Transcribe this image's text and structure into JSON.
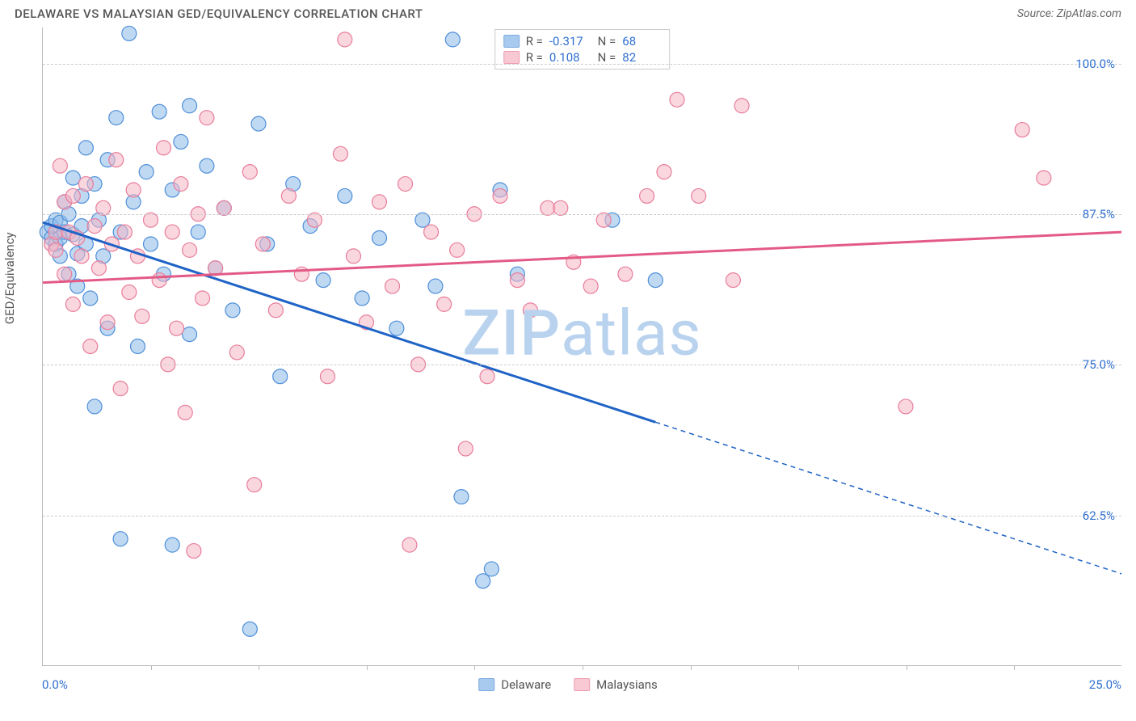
{
  "title": "DELAWARE VS MALAYSIAN GED/EQUIVALENCY CORRELATION CHART",
  "source_label": "Source:",
  "source_value": "ZipAtlas.com",
  "y_axis_title": "GED/Equivalency",
  "watermark_a": "ZIP",
  "watermark_b": "atlas",
  "watermark_color": "#b9d3ef",
  "axis_label_color": "#2f6fd0",
  "grid_color": "#cccccc",
  "plot_border_color": "#bbbbbb",
  "x_range": [
    0.0,
    25.0
  ],
  "y_range": [
    50.0,
    103.0
  ],
  "x_ticks_at": [
    2.5,
    5.0,
    7.5,
    10.0,
    12.5,
    15.0,
    17.5,
    20.0,
    22.5
  ],
  "x_tick_labels": {
    "start": "0.0%",
    "end": "25.0%"
  },
  "y_gridlines": [
    {
      "v": 100.0,
      "label": "100.0%"
    },
    {
      "v": 87.5,
      "label": "87.5%"
    },
    {
      "v": 75.0,
      "label": "75.0%"
    },
    {
      "v": 62.5,
      "label": "62.5%"
    }
  ],
  "series": [
    {
      "key": "delaware",
      "name": "Delaware",
      "fill": "#8bb9ea",
      "fill_opacity": 0.55,
      "stroke": "#4f8fd9",
      "trend_color": "#1f63c6",
      "trend_width": 3,
      "R": "-0.317",
      "N": "68",
      "trend_solid": {
        "x1": 0.0,
        "y1": 86.8,
        "x2": 14.2,
        "y2": 70.2
      },
      "trend_dash": {
        "x1": 14.2,
        "y1": 70.2,
        "x2": 25.0,
        "y2": 57.6
      },
      "points": [
        [
          0.1,
          86.0
        ],
        [
          0.2,
          85.5
        ],
        [
          0.2,
          86.5
        ],
        [
          0.3,
          85.0
        ],
        [
          0.3,
          87.0
        ],
        [
          0.4,
          85.5
        ],
        [
          0.4,
          86.8
        ],
        [
          0.4,
          84.0
        ],
        [
          0.5,
          88.5
        ],
        [
          0.5,
          86.0
        ],
        [
          0.6,
          82.5
        ],
        [
          0.6,
          87.5
        ],
        [
          0.7,
          85.8
        ],
        [
          0.7,
          90.5
        ],
        [
          0.8,
          84.2
        ],
        [
          0.8,
          81.5
        ],
        [
          0.9,
          89.0
        ],
        [
          0.9,
          86.5
        ],
        [
          1.0,
          93.0
        ],
        [
          1.0,
          85.0
        ],
        [
          1.1,
          80.5
        ],
        [
          1.2,
          90.0
        ],
        [
          1.2,
          71.5
        ],
        [
          1.3,
          87.0
        ],
        [
          1.4,
          84.0
        ],
        [
          1.5,
          92.0
        ],
        [
          1.5,
          78.0
        ],
        [
          1.7,
          95.5
        ],
        [
          1.8,
          86.0
        ],
        [
          1.8,
          60.5
        ],
        [
          2.0,
          102.5
        ],
        [
          2.1,
          88.5
        ],
        [
          2.2,
          76.5
        ],
        [
          2.4,
          91.0
        ],
        [
          2.5,
          85.0
        ],
        [
          2.7,
          96.0
        ],
        [
          2.8,
          82.5
        ],
        [
          3.0,
          89.5
        ],
        [
          3.0,
          60.0
        ],
        [
          3.2,
          93.5
        ],
        [
          3.4,
          77.5
        ],
        [
          3.4,
          96.5
        ],
        [
          3.6,
          86.0
        ],
        [
          3.8,
          91.5
        ],
        [
          4.0,
          83.0
        ],
        [
          4.2,
          88.0
        ],
        [
          4.4,
          79.5
        ],
        [
          4.8,
          53.0
        ],
        [
          5.0,
          95.0
        ],
        [
          5.2,
          85.0
        ],
        [
          5.5,
          74.0
        ],
        [
          5.8,
          90.0
        ],
        [
          6.2,
          86.5
        ],
        [
          6.5,
          82.0
        ],
        [
          7.0,
          89.0
        ],
        [
          7.4,
          80.5
        ],
        [
          7.8,
          85.5
        ],
        [
          8.2,
          78.0
        ],
        [
          8.8,
          87.0
        ],
        [
          9.1,
          81.5
        ],
        [
          9.5,
          102.0
        ],
        [
          9.7,
          64.0
        ],
        [
          10.2,
          57.0
        ],
        [
          10.4,
          58.0
        ],
        [
          10.6,
          89.5
        ],
        [
          11.0,
          82.5
        ],
        [
          13.2,
          87.0
        ],
        [
          14.2,
          82.0
        ]
      ]
    },
    {
      "key": "malaysians",
      "name": "Malaysians",
      "fill": "#f6b6c5",
      "fill_opacity": 0.55,
      "stroke": "#e87d9b",
      "trend_color": "#e35a86",
      "trend_width": 3,
      "R": "0.108",
      "N": "82",
      "trend_solid": {
        "x1": 0.0,
        "y1": 81.8,
        "x2": 25.0,
        "y2": 86.0
      },
      "trend_dash": null,
      "points": [
        [
          0.2,
          85.0
        ],
        [
          0.3,
          86.0
        ],
        [
          0.3,
          84.5
        ],
        [
          0.4,
          91.5
        ],
        [
          0.5,
          82.5
        ],
        [
          0.5,
          88.5
        ],
        [
          0.6,
          86.0
        ],
        [
          0.7,
          80.0
        ],
        [
          0.7,
          89.0
        ],
        [
          0.8,
          85.5
        ],
        [
          0.9,
          84.0
        ],
        [
          1.0,
          90.0
        ],
        [
          1.1,
          76.5
        ],
        [
          1.2,
          86.5
        ],
        [
          1.3,
          83.0
        ],
        [
          1.4,
          88.0
        ],
        [
          1.5,
          78.5
        ],
        [
          1.6,
          85.0
        ],
        [
          1.7,
          92.0
        ],
        [
          1.8,
          73.0
        ],
        [
          1.9,
          86.0
        ],
        [
          2.0,
          81.0
        ],
        [
          2.1,
          89.5
        ],
        [
          2.2,
          84.0
        ],
        [
          2.3,
          79.0
        ],
        [
          2.5,
          87.0
        ],
        [
          2.7,
          82.0
        ],
        [
          2.8,
          93.0
        ],
        [
          2.9,
          75.0
        ],
        [
          3.0,
          86.0
        ],
        [
          3.1,
          78.0
        ],
        [
          3.2,
          90.0
        ],
        [
          3.3,
          71.0
        ],
        [
          3.4,
          84.5
        ],
        [
          3.5,
          59.5
        ],
        [
          3.6,
          87.5
        ],
        [
          3.7,
          80.5
        ],
        [
          3.8,
          95.5
        ],
        [
          4.0,
          83.0
        ],
        [
          4.2,
          88.0
        ],
        [
          4.5,
          76.0
        ],
        [
          4.8,
          91.0
        ],
        [
          4.9,
          65.0
        ],
        [
          5.1,
          85.0
        ],
        [
          5.4,
          79.5
        ],
        [
          5.7,
          89.0
        ],
        [
          6.0,
          82.5
        ],
        [
          6.3,
          87.0
        ],
        [
          6.6,
          74.0
        ],
        [
          6.9,
          92.5
        ],
        [
          7.0,
          102.0
        ],
        [
          7.2,
          84.0
        ],
        [
          7.5,
          78.5
        ],
        [
          7.8,
          88.5
        ],
        [
          8.1,
          81.5
        ],
        [
          8.4,
          90.0
        ],
        [
          8.5,
          60.0
        ],
        [
          8.7,
          75.0
        ],
        [
          9.0,
          86.0
        ],
        [
          9.3,
          80.0
        ],
        [
          9.6,
          84.5
        ],
        [
          9.8,
          68.0
        ],
        [
          10.0,
          87.5
        ],
        [
          10.3,
          74.0
        ],
        [
          10.6,
          89.0
        ],
        [
          11.0,
          82.0
        ],
        [
          11.3,
          79.5
        ],
        [
          11.7,
          88.0
        ],
        [
          12.0,
          88.0
        ],
        [
          12.3,
          83.5
        ],
        [
          12.7,
          81.5
        ],
        [
          13.0,
          87.0
        ],
        [
          13.5,
          82.5
        ],
        [
          14.0,
          89.0
        ],
        [
          14.4,
          91.0
        ],
        [
          14.7,
          97.0
        ],
        [
          15.2,
          89.0
        ],
        [
          16.0,
          82.0
        ],
        [
          16.2,
          96.5
        ],
        [
          20.0,
          71.5
        ],
        [
          22.7,
          94.5
        ],
        [
          23.2,
          90.5
        ]
      ]
    }
  ]
}
